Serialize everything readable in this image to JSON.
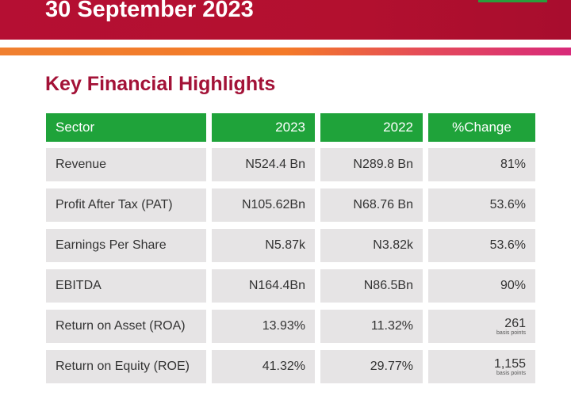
{
  "header": {
    "title": "30 September 2023"
  },
  "section_title": "Key Financial Highlights",
  "table": {
    "columns": [
      "Sector",
      "2023",
      "2022",
      "%Change"
    ],
    "rows": [
      {
        "label": "Revenue",
        "y2023": "N524.4 Bn",
        "y2022": "N289.8 Bn",
        "change": "81%"
      },
      {
        "label": "Profit After Tax (PAT)",
        "y2023": "N105.62Bn",
        "y2022": "N68.76 Bn",
        "change": "53.6%"
      },
      {
        "label": "Earnings Per Share",
        "y2023": "N5.87k",
        "y2022": "N3.82k",
        "change": "53.6%"
      },
      {
        "label": "EBITDA",
        "y2023": "N164.4Bn",
        "y2022": "N86.5Bn",
        "change": "90%"
      },
      {
        "label": "Return on Asset (ROA)",
        "y2023": "13.93%",
        "y2022": "11.32%",
        "change": "261",
        "unit": "basis points"
      },
      {
        "label": "Return on Equity (ROE)",
        "y2023": "41.32%",
        "y2022": "29.77%",
        "change": "1,155",
        "unit": "basis points"
      }
    ]
  }
}
